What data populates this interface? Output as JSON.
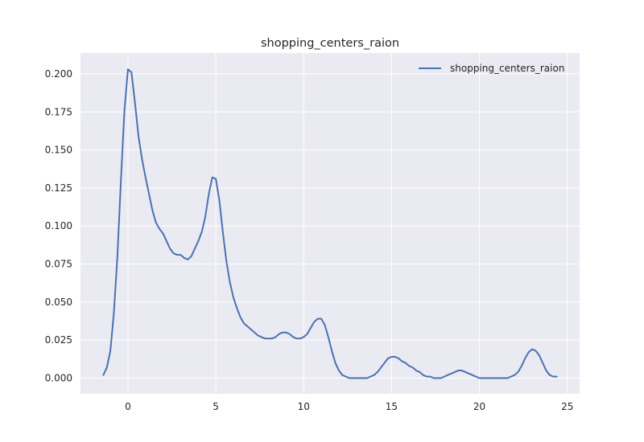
{
  "chart_data": {
    "type": "line",
    "title": "shopping_centers_raion",
    "xlabel": "",
    "ylabel": "",
    "xlim": [
      -2.7,
      25.7
    ],
    "ylim": [
      -0.0103,
      0.2137
    ],
    "xticks": [
      0,
      5,
      10,
      15,
      20,
      25
    ],
    "yticks": [
      0.0,
      0.025,
      0.05,
      0.075,
      0.1,
      0.125,
      0.15,
      0.175,
      0.2
    ],
    "ytick_labels": [
      "0.000",
      "0.025",
      "0.050",
      "0.075",
      "0.100",
      "0.125",
      "0.150",
      "0.175",
      "0.200"
    ],
    "grid": true,
    "legend_position": "top-right",
    "series": [
      {
        "name": "shopping_centers_raion",
        "color": "#4c72b0",
        "x": [
          -1.4,
          -1.2,
          -1.0,
          -0.8,
          -0.6,
          -0.4,
          -0.2,
          0.0,
          0.2,
          0.4,
          0.6,
          0.8,
          1.0,
          1.2,
          1.4,
          1.6,
          1.8,
          2.0,
          2.2,
          2.4,
          2.6,
          2.8,
          3.0,
          3.2,
          3.4,
          3.6,
          3.8,
          4.0,
          4.2,
          4.4,
          4.6,
          4.8,
          5.0,
          5.2,
          5.4,
          5.6,
          5.8,
          6.0,
          6.2,
          6.4,
          6.6,
          6.8,
          7.0,
          7.2,
          7.4,
          7.6,
          7.8,
          8.0,
          8.2,
          8.4,
          8.6,
          8.8,
          9.0,
          9.2,
          9.4,
          9.6,
          9.8,
          10.0,
          10.2,
          10.4,
          10.6,
          10.8,
          11.0,
          11.2,
          11.4,
          11.6,
          11.8,
          12.0,
          12.2,
          12.4,
          12.6,
          12.8,
          13.0,
          13.2,
          13.4,
          13.6,
          13.8,
          14.0,
          14.2,
          14.4,
          14.6,
          14.8,
          15.0,
          15.2,
          15.4,
          15.6,
          15.8,
          16.0,
          16.2,
          16.4,
          16.6,
          16.8,
          17.0,
          17.2,
          17.4,
          17.6,
          17.8,
          18.0,
          18.2,
          18.4,
          18.6,
          18.8,
          19.0,
          19.2,
          19.4,
          19.6,
          19.8,
          20.0,
          20.2,
          20.4,
          20.6,
          20.8,
          21.0,
          21.2,
          21.4,
          21.6,
          21.8,
          22.0,
          22.2,
          22.4,
          22.6,
          22.8,
          23.0,
          23.2,
          23.4,
          23.6,
          23.8,
          24.0,
          24.2,
          24.4
        ],
        "y": [
          0.002,
          0.007,
          0.018,
          0.043,
          0.08,
          0.13,
          0.176,
          0.203,
          0.201,
          0.181,
          0.159,
          0.144,
          0.132,
          0.121,
          0.11,
          0.102,
          0.098,
          0.095,
          0.09,
          0.085,
          0.082,
          0.081,
          0.081,
          0.079,
          0.078,
          0.08,
          0.085,
          0.09,
          0.096,
          0.106,
          0.121,
          0.132,
          0.131,
          0.117,
          0.096,
          0.077,
          0.063,
          0.053,
          0.046,
          0.04,
          0.036,
          0.034,
          0.032,
          0.03,
          0.028,
          0.027,
          0.026,
          0.026,
          0.026,
          0.027,
          0.029,
          0.03,
          0.03,
          0.029,
          0.027,
          0.026,
          0.026,
          0.027,
          0.029,
          0.033,
          0.037,
          0.039,
          0.039,
          0.035,
          0.027,
          0.018,
          0.01,
          0.005,
          0.002,
          0.001,
          0.0,
          0.0,
          0.0,
          0.0,
          0.0,
          0.0,
          0.001,
          0.002,
          0.004,
          0.007,
          0.01,
          0.013,
          0.014,
          0.014,
          0.013,
          0.011,
          0.01,
          0.008,
          0.007,
          0.005,
          0.004,
          0.002,
          0.001,
          0.001,
          0.0,
          0.0,
          0.0,
          0.001,
          0.002,
          0.003,
          0.004,
          0.005,
          0.005,
          0.004,
          0.003,
          0.002,
          0.001,
          0.0,
          0.0,
          0.0,
          0.0,
          0.0,
          0.0,
          0.0,
          0.0,
          0.0,
          0.001,
          0.002,
          0.004,
          0.008,
          0.013,
          0.017,
          0.019,
          0.018,
          0.015,
          0.01,
          0.005,
          0.002,
          0.001,
          0.001
        ]
      }
    ]
  }
}
